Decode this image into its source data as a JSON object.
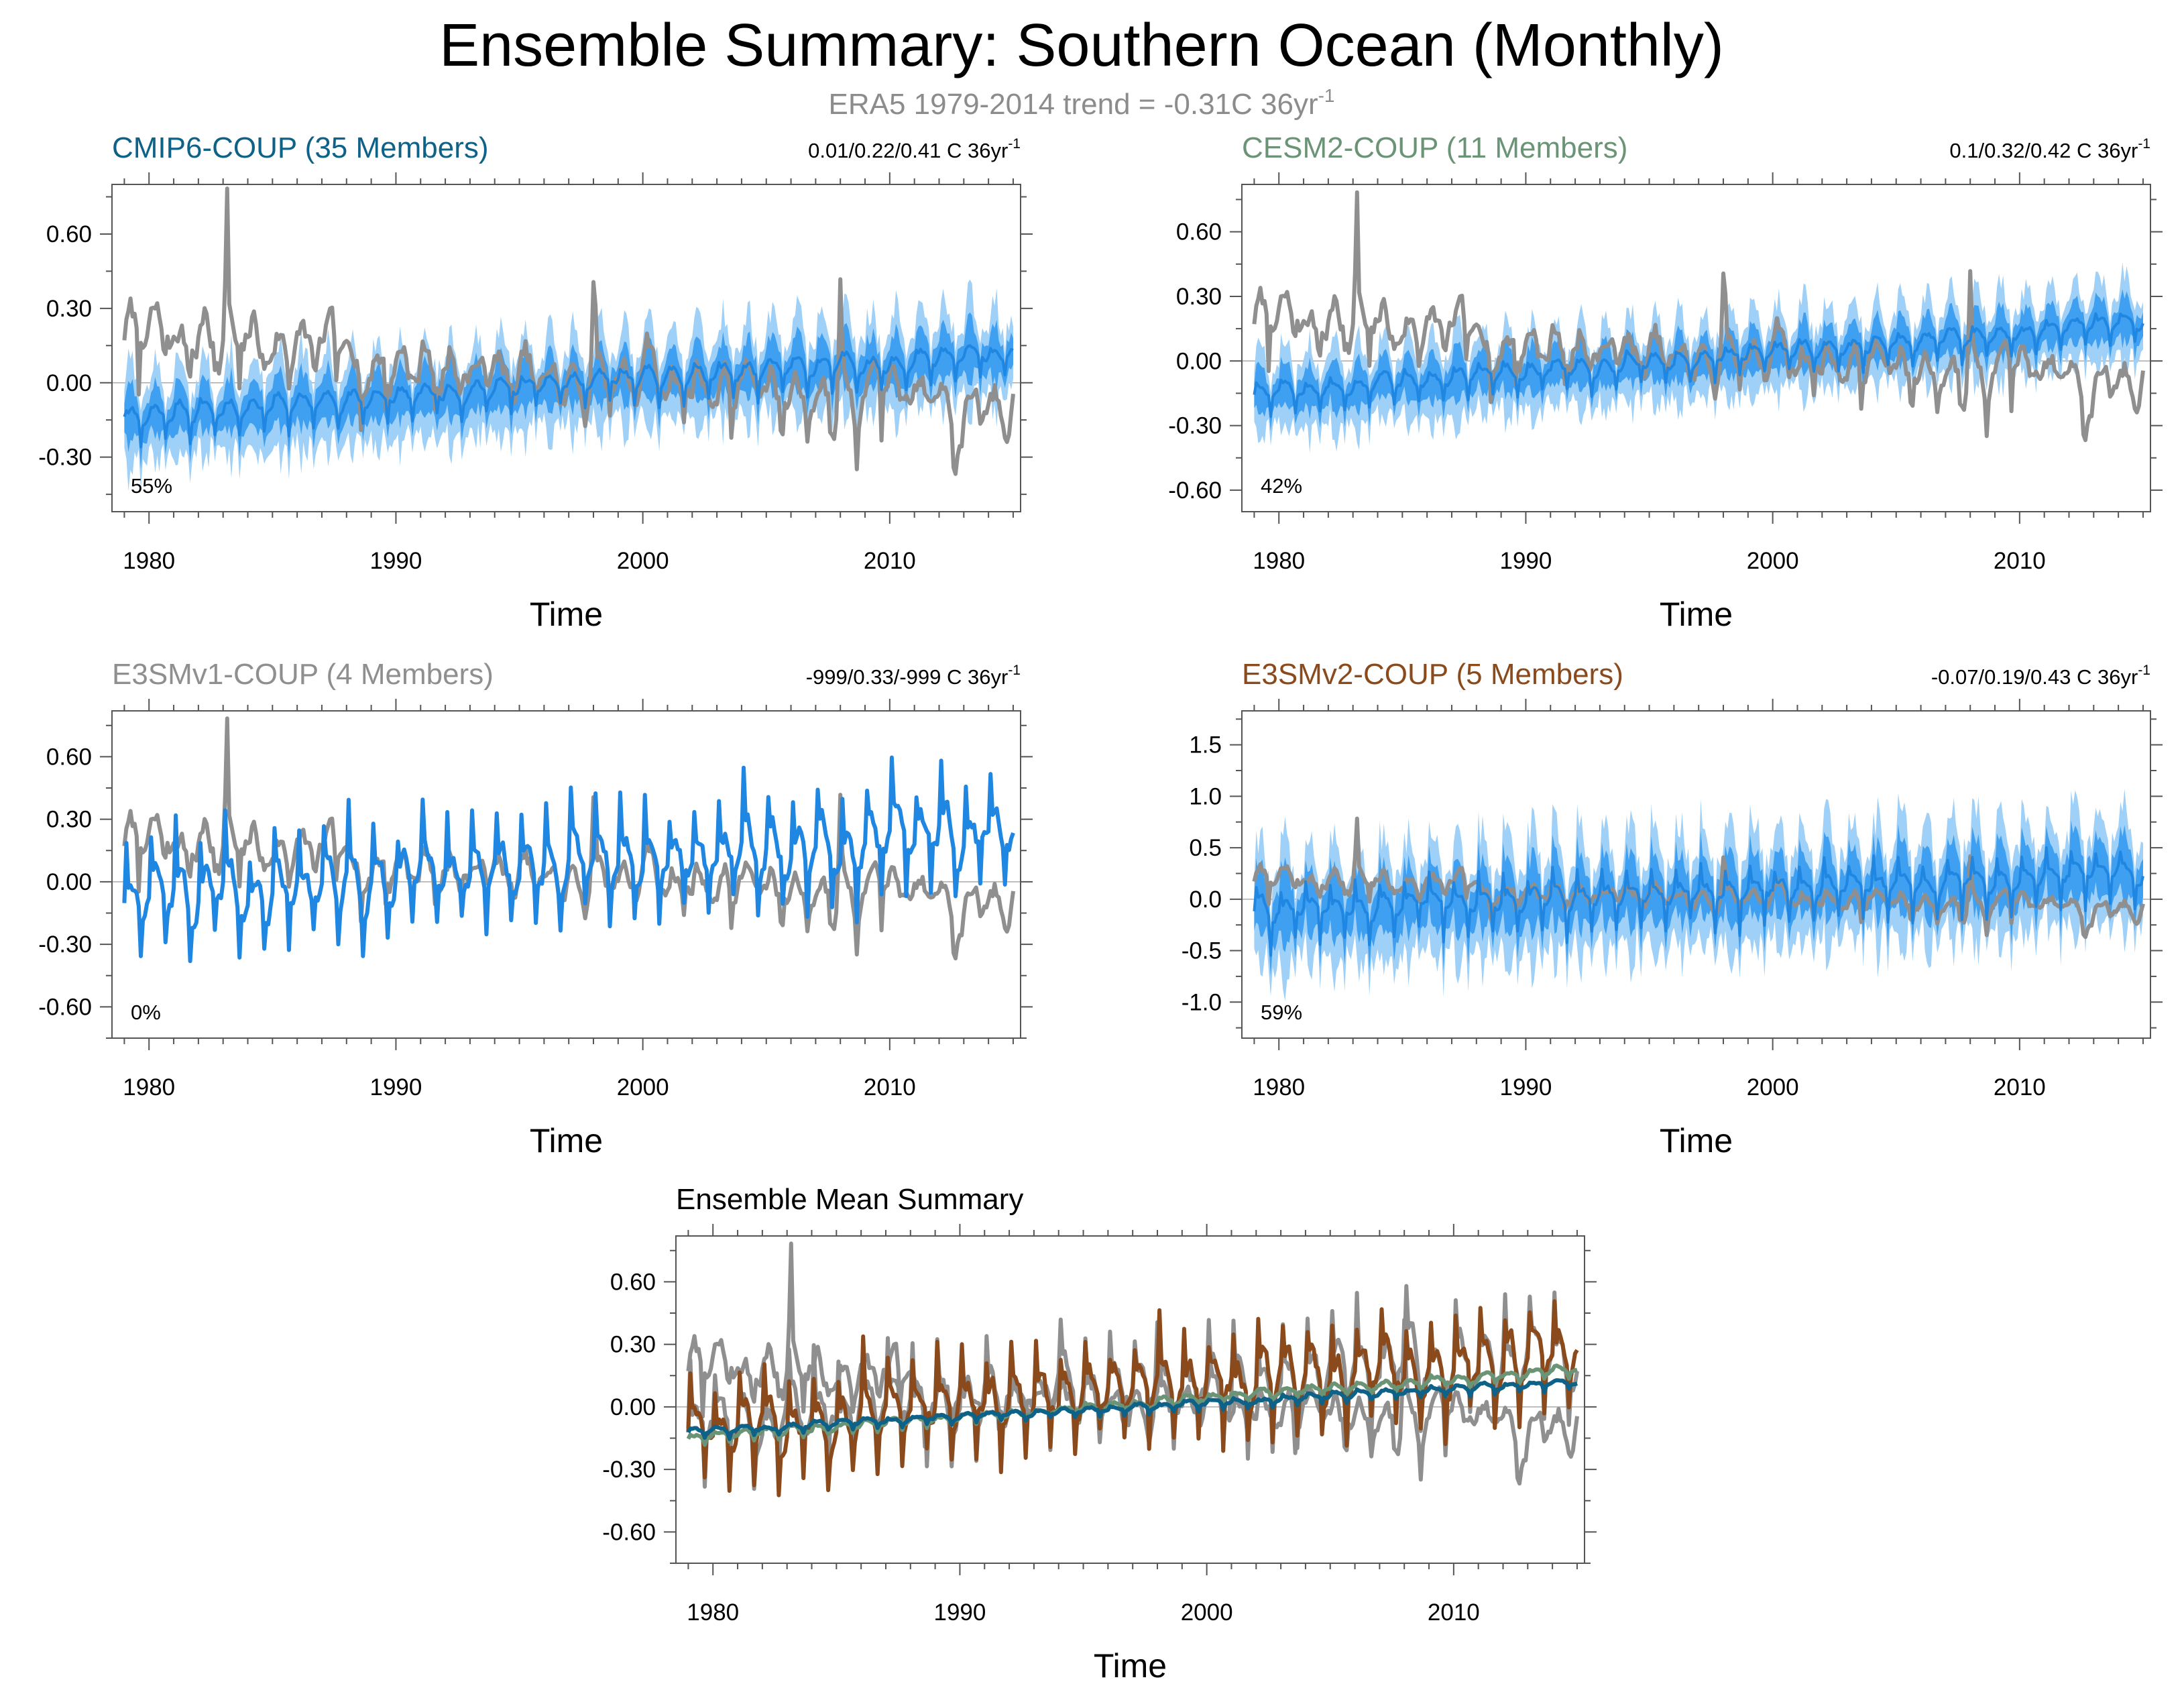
{
  "figure": {
    "title": "Ensemble Summary: Southern Ocean (Monthly)",
    "subtitle_main": "ERA5 1979-2014 trend = -0.31C 36yr",
    "subtitle_sup": "-1"
  },
  "colors": {
    "obs": "#8f8f8f",
    "model_line": "#1f86e2",
    "band_outer": "#9fd0f7",
    "band_inner": "#3f9ff0",
    "cmip6": "#0e6187",
    "cesm2": "#6b9477",
    "e3smv1": "#8f8f8f",
    "e3smv2": "#8a4a1c",
    "mean_title": "#000000"
  },
  "chart_data": [
    {
      "type": "line",
      "name": "cmip6",
      "title": "CMIP6-COUP (35 Members)",
      "title_color_key": "cmip6",
      "trend_label": "0.01/0.22/0.41 C 36yr",
      "trend_sup": "-1",
      "percent": "55%",
      "xlabel": "Time",
      "xlim": [
        1978.5,
        2015.3
      ],
      "ylim": [
        -0.52,
        0.8
      ],
      "xticks": [
        "1980",
        "1990",
        "2000",
        "2010"
      ],
      "yticks": [
        "0.60",
        "0.30",
        "0.00",
        "-0.30"
      ],
      "ytick_values": [
        0.6,
        0.3,
        0.0,
        -0.3
      ],
      "band": true,
      "model": {
        "start": -0.13,
        "end": 0.12,
        "seas": 0.03,
        "spikeDn": 0.1,
        "spikeUp": 0.02
      },
      "band_width": {
        "outer": 0.12,
        "inner": 0.06
      }
    },
    {
      "type": "line",
      "name": "cesm2",
      "title": "CESM2-COUP (11 Members)",
      "title_color_key": "cesm2",
      "trend_label": "0.1/0.32/0.42 C 36yr",
      "trend_sup": "-1",
      "percent": "42%",
      "xlabel": "Time",
      "xlim": [
        1978.5,
        2015.3
      ],
      "ylim": [
        -0.7,
        0.82
      ],
      "xticks": [
        "1980",
        "1990",
        "2000",
        "2010"
      ],
      "yticks": [
        "0.60",
        "0.30",
        "0.00",
        "-0.30",
        "-0.60"
      ],
      "ytick_values": [
        0.6,
        0.3,
        0.0,
        -0.3,
        -0.6
      ],
      "band": true,
      "model": {
        "start": -0.15,
        "end": 0.18,
        "seas": 0.03,
        "spikeDn": 0.1,
        "spikeUp": 0.03
      },
      "band_width": {
        "outer": 0.12,
        "inner": 0.06
      }
    },
    {
      "type": "line",
      "name": "e3smv1",
      "title": "E3SMv1-COUP (4 Members)",
      "title_color_key": "e3smv1",
      "trend_label": "-999/0.33/-999 C 36yr",
      "trend_sup": "-1",
      "percent": "0%",
      "xlabel": "Time",
      "xlim": [
        1978.5,
        2015.3
      ],
      "ylim": [
        -0.75,
        0.82
      ],
      "xticks": [
        "1980",
        "1990",
        "2000",
        "2010"
      ],
      "yticks": [
        "0.60",
        "0.30",
        "0.00",
        "-0.30",
        "-0.60"
      ],
      "ytick_values": [
        0.6,
        0.3,
        0.0,
        -0.3,
        -0.6
      ],
      "band": false,
      "model": {
        "start": -0.08,
        "end": 0.25,
        "seas": 0.1,
        "spikeDn": 0.25,
        "spikeUp": 0.3
      }
    },
    {
      "type": "line",
      "name": "e3smv2",
      "title": "E3SMv2-COUP (5 Members)",
      "title_color_key": "e3smv2",
      "trend_label": "-0.07/0.19/0.43 C 36yr",
      "trend_sup": "-1",
      "percent": "59%",
      "xlabel": "Time",
      "xlim": [
        1978.5,
        2015.3
      ],
      "ylim": [
        -1.35,
        1.83
      ],
      "xticks": [
        "1980",
        "1990",
        "2000",
        "2010"
      ],
      "yticks": [
        "1.5",
        "1.0",
        "0.5",
        "0.0",
        "-0.5",
        "-1.0"
      ],
      "ytick_values": [
        1.5,
        1.0,
        0.5,
        0.0,
        -0.5,
        -1.0
      ],
      "band": true,
      "model": {
        "start": -0.1,
        "end": 0.25,
        "seas": 0.08,
        "spikeDn": 0.35,
        "spikeUp": 0.25
      },
      "band_width": {
        "outer": 0.35,
        "inner": 0.18
      }
    },
    {
      "type": "line",
      "name": "mean",
      "title": "Ensemble Mean Summary",
      "title_color_key": "mean_title",
      "xlabel": "Time",
      "xlim": [
        1978.5,
        2015.3
      ],
      "ylim": [
        -0.75,
        0.82
      ],
      "xticks": [
        "1980",
        "1990",
        "2000",
        "2010"
      ],
      "yticks": [
        "0.60",
        "0.30",
        "0.00",
        "-0.30",
        "-0.60"
      ],
      "ytick_values": [
        0.6,
        0.3,
        0.0,
        -0.3,
        -0.6
      ],
      "series": [
        {
          "name": "ERA5",
          "color_key": "obs"
        },
        {
          "name": "E3SMv1-COUP",
          "color_key": "e3smv1"
        },
        {
          "name": "E3SMv2-COUP",
          "color_key": "e3smv2"
        },
        {
          "name": "CESM2-COUP",
          "color_key": "cesm2"
        },
        {
          "name": "CMIP6-COUP",
          "color_key": "cmip6"
        }
      ]
    }
  ]
}
